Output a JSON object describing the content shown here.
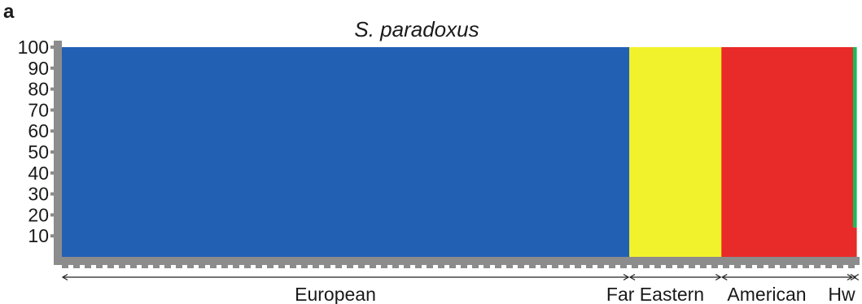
{
  "panel_label": "a",
  "chart_data": {
    "type": "bar",
    "subtype": "stacked-ancestry-proportions",
    "title": "S. paradoxus",
    "xlabel": "",
    "ylabel": "",
    "ylim": [
      0,
      100
    ],
    "yticks": [
      10,
      20,
      30,
      40,
      50,
      60,
      70,
      80,
      90,
      100
    ],
    "grid": false,
    "legend": "none",
    "groups": [
      {
        "label": "European",
        "start": 0.0,
        "end": 0.7142
      },
      {
        "label": "Far Eastern",
        "start": 0.7142,
        "end": 0.8302
      },
      {
        "label": "American",
        "start": 0.8302,
        "end": 0.9958
      },
      {
        "label": "Hw",
        "start": 0.9958,
        "end": 1.0
      }
    ],
    "segments": [
      {
        "start": 0.0,
        "end": 0.7142,
        "series": "European cluster",
        "values": [
          100,
          0,
          0,
          0
        ]
      },
      {
        "start": 0.7142,
        "end": 0.8302,
        "series": "Far Eastern cluster",
        "values": [
          0,
          100,
          0,
          0
        ]
      },
      {
        "start": 0.8302,
        "end": 0.9958,
        "series": "American cluster",
        "values": [
          0,
          0,
          100,
          0
        ]
      },
      {
        "start": 0.9958,
        "end": 1.0,
        "series": "Hawaiian cluster",
        "values": [
          0,
          0,
          14,
          86
        ]
      }
    ],
    "colors": {
      "European cluster": "#2260b4",
      "Far Eastern cluster": "#f2f22c",
      "American cluster": "#e82a28",
      "Hawaiian cluster": "#1db858",
      "axis": "#8c8c8c"
    }
  }
}
